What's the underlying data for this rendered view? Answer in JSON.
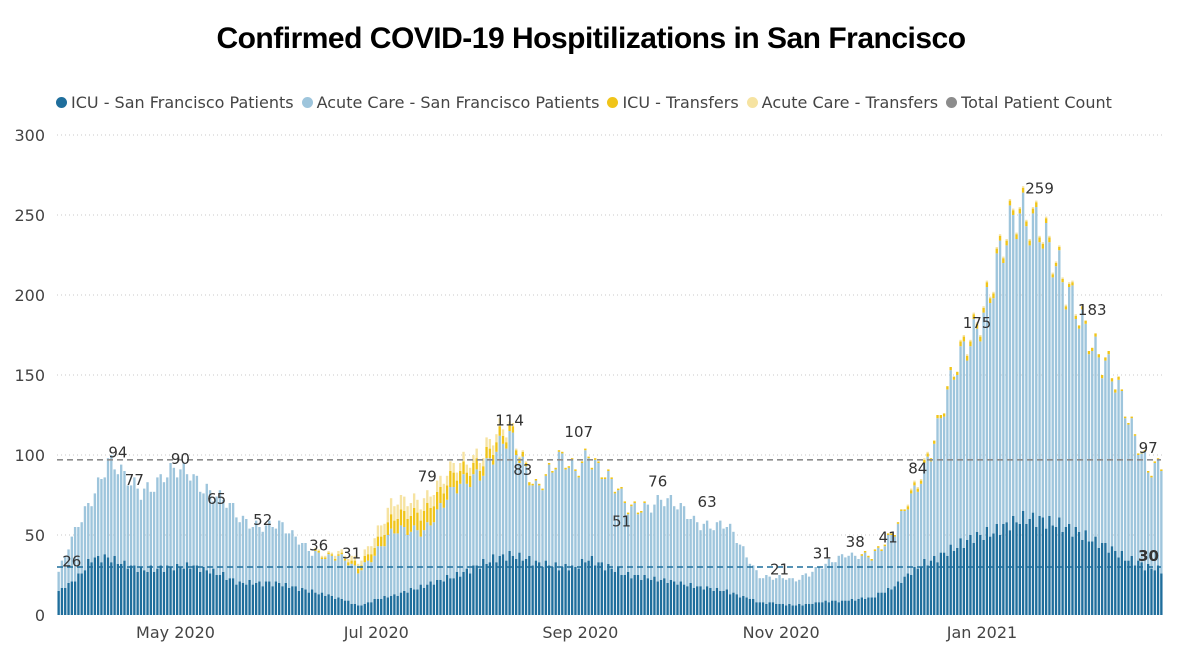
{
  "title": "Confirmed COVID-19 Hospitilizations in San Francisco",
  "legend": [
    {
      "label": "ICU - San Francisco Patients",
      "color": "#1f6e9c"
    },
    {
      "label": "Acute Care - San Francisco Patients",
      "color": "#9ec5dc"
    },
    {
      "label": "ICU - Transfers",
      "color": "#f0c419"
    },
    {
      "label": "Acute Care - Transfers",
      "color": "#f6e3a1"
    },
    {
      "label": "Total Patient Count",
      "color": "#8c8c8c"
    }
  ],
  "chart_data": {
    "type": "bar",
    "stacked": true,
    "x_start": "2020-03-26",
    "x_end": "2021-02-24",
    "x_ticks": [
      "May 2020",
      "Jul 2020",
      "Sep 2020",
      "Nov 2020",
      "Jan 2021"
    ],
    "y_ticks": [
      "0",
      "50",
      "100",
      "150",
      "200",
      "250",
      "300"
    ],
    "ylim": [
      0,
      300
    ],
    "grid": true,
    "legend_position": "top",
    "anchors": [
      [
        "2020-03-26",
        15,
        26,
        0,
        0
      ],
      [
        "2020-04-01",
        24,
        58,
        0,
        0
      ],
      [
        "2020-04-05",
        35,
        75,
        0,
        0
      ],
      [
        "2020-04-10",
        36,
        94,
        0,
        0
      ],
      [
        "2020-04-15",
        32,
        85,
        0,
        0
      ],
      [
        "2020-04-20",
        28,
        80,
        0,
        0
      ],
      [
        "2020-05-01",
        30,
        88,
        0,
        0
      ],
      [
        "2020-05-05",
        31,
        90,
        0,
        0
      ],
      [
        "2020-05-15",
        25,
        70,
        0,
        0
      ],
      [
        "2020-05-20",
        20,
        60,
        0,
        0
      ],
      [
        "2020-06-01",
        20,
        55,
        0,
        0
      ],
      [
        "2020-06-08",
        16,
        45,
        0,
        0
      ],
      [
        "2020-06-15",
        13,
        36,
        1,
        1
      ],
      [
        "2020-06-20",
        10,
        35,
        1,
        2
      ],
      [
        "2020-06-25",
        6,
        28,
        3,
        3
      ],
      [
        "2020-07-05",
        12,
        50,
        8,
        9
      ],
      [
        "2020-07-15",
        18,
        55,
        12,
        8
      ],
      [
        "2020-07-25",
        25,
        78,
        8,
        5
      ],
      [
        "2020-08-05",
        35,
        100,
        6,
        6
      ],
      [
        "2020-08-10",
        38,
        108,
        4,
        2
      ],
      [
        "2020-08-18",
        33,
        82,
        1,
        0
      ],
      [
        "2020-08-25",
        30,
        95,
        1,
        0
      ],
      [
        "2020-08-30",
        30,
        88,
        1,
        0
      ],
      [
        "2020-09-03",
        35,
        104,
        1,
        0
      ],
      [
        "2020-09-15",
        25,
        65,
        1,
        0
      ],
      [
        "2020-09-25",
        22,
        73,
        0,
        0
      ],
      [
        "2020-10-05",
        18,
        60,
        0,
        0
      ],
      [
        "2020-10-15",
        15,
        55,
        0,
        0
      ],
      [
        "2020-10-25",
        8,
        25,
        0,
        0
      ],
      [
        "2020-11-05",
        6,
        21,
        0,
        0
      ],
      [
        "2020-11-12",
        8,
        31,
        0,
        0
      ],
      [
        "2020-11-20",
        9,
        36,
        0,
        0
      ],
      [
        "2020-11-28",
        11,
        38,
        1,
        0
      ],
      [
        "2020-12-05",
        18,
        50,
        1,
        0
      ],
      [
        "2020-12-12",
        30,
        82,
        2,
        1
      ],
      [
        "2020-12-20",
        38,
        130,
        2,
        0
      ],
      [
        "2020-12-28",
        48,
        172,
        3,
        1
      ],
      [
        "2021-01-05",
        53,
        218,
        3,
        1
      ],
      [
        "2021-01-12",
        60,
        245,
        3,
        1
      ],
      [
        "2021-01-18",
        60,
        254,
        3,
        1
      ],
      [
        "2021-01-26",
        55,
        195,
        2,
        1
      ],
      [
        "2021-02-02",
        48,
        178,
        2,
        0
      ],
      [
        "2021-02-08",
        42,
        155,
        2,
        0
      ],
      [
        "2021-02-14",
        35,
        118,
        1,
        0
      ],
      [
        "2021-02-20",
        30,
        95,
        1,
        0
      ],
      [
        "2021-02-24",
        28,
        96,
        1,
        0
      ]
    ],
    "reference_lines": [
      {
        "name": "Total Patient Count",
        "value": 97,
        "color": "#8c8c8c",
        "label": "97"
      },
      {
        "name": "ICU - San Francisco Patients",
        "value": 30,
        "color": "#1f6e9c",
        "label": "30"
      }
    ],
    "data_labels": [
      {
        "date": "2020-03-30",
        "value": 26,
        "text": "26"
      },
      {
        "date": "2020-04-13",
        "value": 94,
        "text": "94"
      },
      {
        "date": "2020-04-18",
        "value": 77,
        "text": "77"
      },
      {
        "date": "2020-05-02",
        "value": 90,
        "text": "90"
      },
      {
        "date": "2020-05-13",
        "value": 65,
        "text": "65"
      },
      {
        "date": "2020-05-27",
        "value": 52,
        "text": "52"
      },
      {
        "date": "2020-06-13",
        "value": 36,
        "text": "36"
      },
      {
        "date": "2020-06-23",
        "value": 31,
        "text": "31"
      },
      {
        "date": "2020-07-16",
        "value": 79,
        "text": "79"
      },
      {
        "date": "2020-08-10",
        "value": 114,
        "text": "114"
      },
      {
        "date": "2020-08-14",
        "value": 83,
        "text": "83"
      },
      {
        "date": "2020-08-31",
        "value": 107,
        "text": "107"
      },
      {
        "date": "2020-09-13",
        "value": 51,
        "text": "51"
      },
      {
        "date": "2020-09-24",
        "value": 76,
        "text": "76"
      },
      {
        "date": "2020-10-09",
        "value": 63,
        "text": "63"
      },
      {
        "date": "2020-10-31",
        "value": 21,
        "text": "21"
      },
      {
        "date": "2020-11-13",
        "value": 31,
        "text": "31"
      },
      {
        "date": "2020-11-23",
        "value": 38,
        "text": "38"
      },
      {
        "date": "2020-12-03",
        "value": 41,
        "text": "41"
      },
      {
        "date": "2020-12-12",
        "value": 84,
        "text": "84"
      },
      {
        "date": "2020-12-30",
        "value": 175,
        "text": "175"
      },
      {
        "date": "2021-01-18",
        "value": 259,
        "text": "259"
      },
      {
        "date": "2021-02-03",
        "value": 183,
        "text": "183"
      },
      {
        "date": "2021-02-20",
        "value": 97,
        "text": "97"
      }
    ]
  }
}
